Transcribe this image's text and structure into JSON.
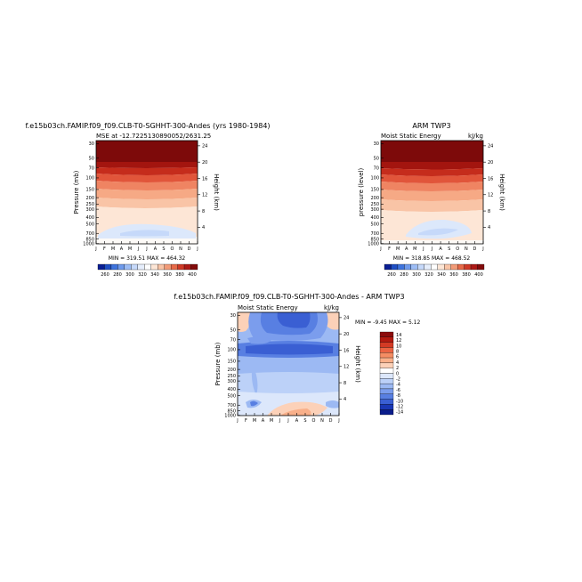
{
  "chart_data": [
    {
      "type": "heatmap",
      "id": "model",
      "title": "f.e15b03ch.FAMIP.f09_f09.CLB-T0-SGHHT-300-Andes (yrs 1980-1984)",
      "subtitle_left": "MSE at -12.7225130890052/2631.25",
      "subtitle_right": "",
      "ylabel": "Pressure (mb)",
      "y2label": "Height (km)",
      "months": [
        "J",
        "F",
        "M",
        "A",
        "M",
        "J",
        "J",
        "A",
        "S",
        "O",
        "N",
        "D",
        "J"
      ],
      "pressure_ticks": [
        "30",
        "50",
        "70",
        "100",
        "150",
        "200",
        "250",
        "300",
        "400",
        "500",
        "700",
        "850",
        "1000"
      ],
      "height_ticks": [
        "24",
        "20",
        "16",
        "12",
        "8",
        "4"
      ],
      "minmax": "MIN = 319.51  MAX = 464.32",
      "colorbar_labels": [
        "260",
        "280",
        "300",
        "320",
        "340",
        "360",
        "380",
        "400"
      ],
      "colorbar_colors": [
        "#0a1f94",
        "#1f4fc4",
        "#3f74dd",
        "#6f9aec",
        "#9dbdf5",
        "#c6d9fa",
        "#e6eefc",
        "#ffffff",
        "#fde6d6",
        "#f9c4a6",
        "#f29b78",
        "#e76a49",
        "#cf3a27",
        "#ad1a16",
        "#830b0b"
      ],
      "zrange": [
        319.51,
        464.32
      ]
    },
    {
      "type": "heatmap",
      "id": "obs",
      "title": "ARM TWP3",
      "subtitle_left": "Moist Static Energy",
      "subtitle_right": "kJ/kg",
      "ylabel": "pressure (level)",
      "y2label": "Height (km)",
      "months": [
        "J",
        "F",
        "M",
        "A",
        "M",
        "J",
        "J",
        "A",
        "S",
        "O",
        "N",
        "D",
        "J"
      ],
      "pressure_ticks": [
        "30",
        "50",
        "70",
        "100",
        "150",
        "200",
        "250",
        "300",
        "400",
        "500",
        "700",
        "850",
        "1000"
      ],
      "height_ticks": [
        "24",
        "20",
        "16",
        "12",
        "8",
        "4"
      ],
      "minmax": "MIN = 318.85  MAX = 468.52",
      "colorbar_labels": [
        "260",
        "280",
        "300",
        "320",
        "340",
        "360",
        "380",
        "400"
      ],
      "colorbar_colors": [
        "#0a1f94",
        "#1f4fc4",
        "#3f74dd",
        "#6f9aec",
        "#9dbdf5",
        "#c6d9fa",
        "#e6eefc",
        "#ffffff",
        "#fde6d6",
        "#f9c4a6",
        "#f29b78",
        "#e76a49",
        "#cf3a27",
        "#ad1a16",
        "#830b0b"
      ],
      "zrange": [
        318.85,
        468.52
      ]
    },
    {
      "type": "heatmap",
      "id": "diff",
      "title": "f.e15b03ch.FAMIP.f09_f09.CLB-T0-SGHHT-300-Andes - ARM TWP3",
      "subtitle_left": "Moist Static Energy",
      "subtitle_right": "kJ/kg",
      "ylabel": "Pressure (mb)",
      "y2label": "Height (km)",
      "months": [
        "J",
        "F",
        "M",
        "A",
        "M",
        "J",
        "J",
        "A",
        "S",
        "O",
        "N",
        "D",
        "J"
      ],
      "pressure_ticks": [
        "30",
        "50",
        "70",
        "100",
        "150",
        "200",
        "250",
        "300",
        "400",
        "500",
        "700",
        "850",
        "1000"
      ],
      "height_ticks": [
        "24",
        "20",
        "16",
        "12",
        "8",
        "4"
      ],
      "minmax": "MIN =  -9.45  MAX =   5.12",
      "colorbar_labels": [
        "14",
        "12",
        "10",
        "8",
        "6",
        "4",
        "2",
        "0",
        "-2",
        "-4",
        "-6",
        "-8",
        "-10",
        "-12",
        "-14"
      ],
      "colorbar_colors": [
        "#8c0b0b",
        "#b2190f",
        "#d33a24",
        "#eb6342",
        "#f58d63",
        "#f9b08a",
        "#fcd1b8",
        "#ffffff",
        "#dce7fb",
        "#bcd1f8",
        "#9cb9f3",
        "#7b9ded",
        "#587fe2",
        "#3a5fd3",
        "#1a37b4",
        "#0a1d8c"
      ],
      "zrange": [
        -9.45,
        5.12
      ]
    }
  ]
}
